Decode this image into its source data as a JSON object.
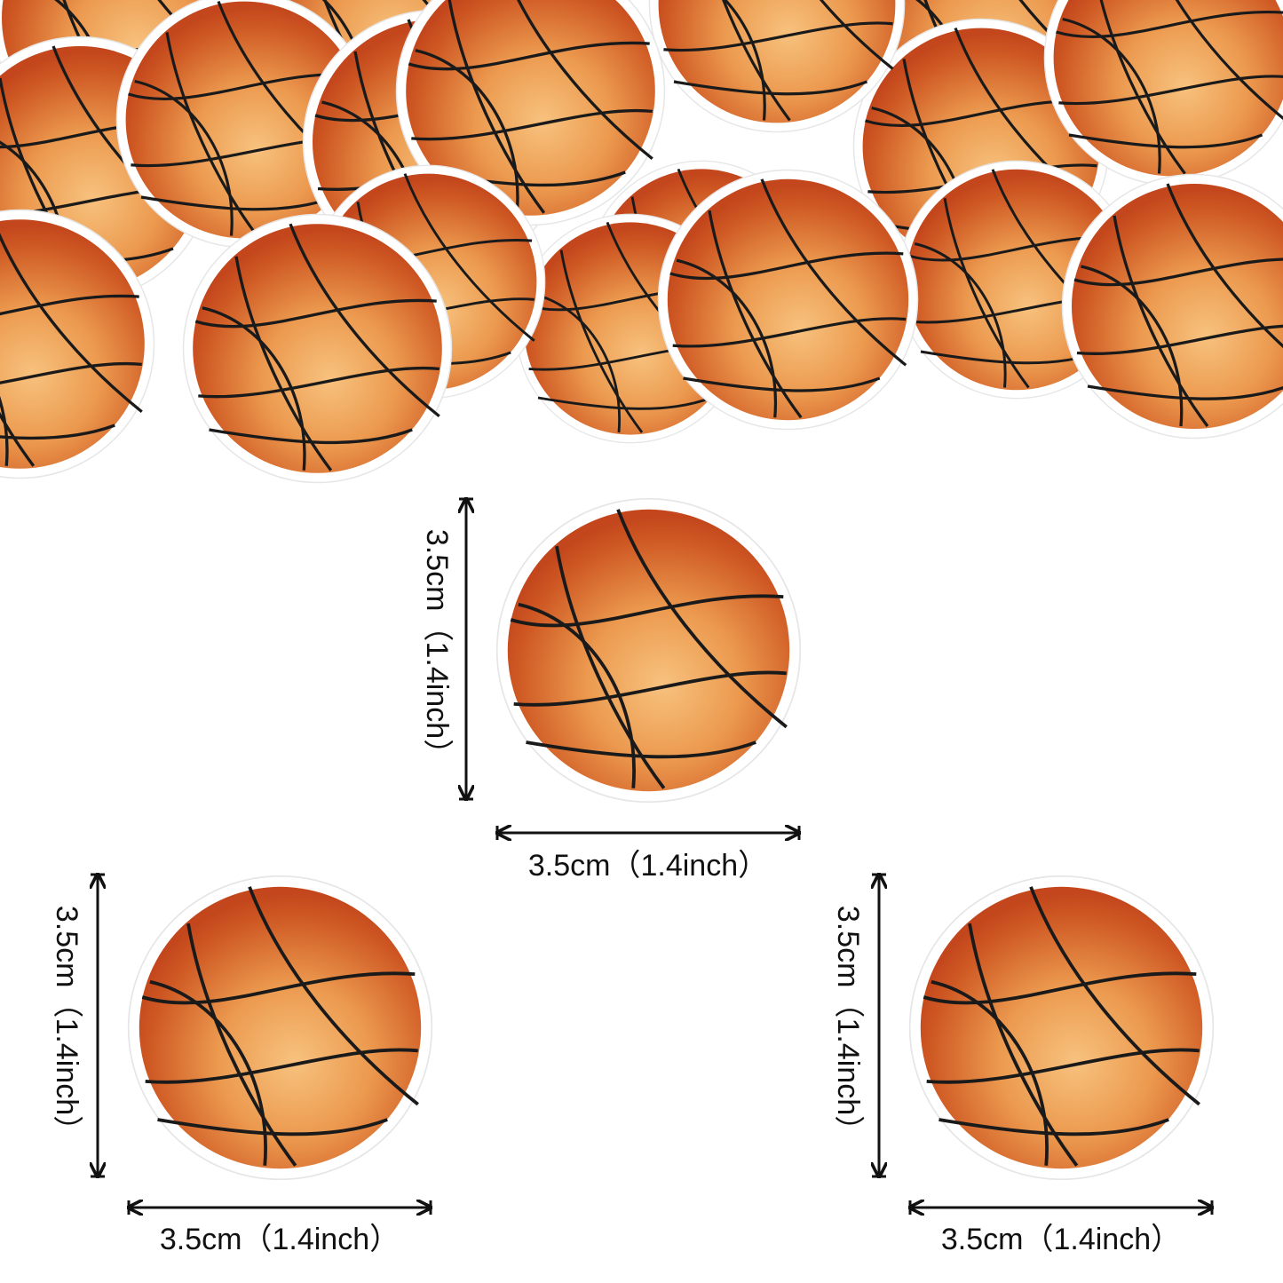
{
  "dimensions": [
    {
      "height_label": "3.5cm（1.4inch）",
      "width_label": "3.5cm（1.4inch）"
    },
    {
      "height_label": "3.5cm（1.4inch）",
      "width_label": "3.5cm（1.4inch）"
    },
    {
      "height_label": "3.5cm（1.4inch）",
      "width_label": "3.5cm（1.4inch）"
    }
  ]
}
